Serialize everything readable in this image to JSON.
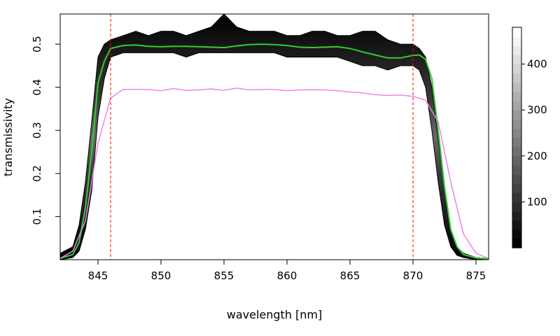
{
  "chart_data": {
    "type": "heatmap",
    "title": "",
    "xlabel": "wavelength [nm]",
    "ylabel": "transmissivity",
    "xlim": [
      842,
      876
    ],
    "ylim": [
      0,
      0.57
    ],
    "x_ticks": [
      845,
      850,
      855,
      860,
      865,
      870,
      875
    ],
    "y_ticks": [
      0.1,
      0.2,
      0.3,
      0.4,
      0.5
    ],
    "reference_lines": [
      846,
      870
    ],
    "reference_line_color": "#ff0000",
    "density_band": {
      "x": [
        842,
        843,
        843.5,
        844,
        844.5,
        845,
        845.5,
        846,
        847,
        848,
        849,
        850,
        851,
        852,
        853,
        854,
        855,
        856,
        857,
        858,
        859,
        860,
        861,
        862,
        863,
        864,
        865,
        866,
        867,
        868,
        869,
        870,
        870.5,
        871,
        871.5,
        872,
        872.5,
        873,
        873.5,
        874,
        875,
        876
      ],
      "lower": [
        0,
        0.005,
        0.02,
        0.07,
        0.16,
        0.33,
        0.42,
        0.47,
        0.48,
        0.48,
        0.48,
        0.48,
        0.48,
        0.47,
        0.48,
        0.48,
        0.48,
        0.48,
        0.48,
        0.48,
        0.48,
        0.47,
        0.47,
        0.47,
        0.47,
        0.47,
        0.46,
        0.45,
        0.45,
        0.44,
        0.45,
        0.45,
        0.44,
        0.4,
        0.3,
        0.18,
        0.08,
        0.03,
        0.01,
        0.005,
        0,
        0
      ],
      "upper": [
        0.015,
        0.03,
        0.08,
        0.18,
        0.32,
        0.47,
        0.5,
        0.51,
        0.52,
        0.53,
        0.52,
        0.53,
        0.53,
        0.52,
        0.53,
        0.54,
        0.57,
        0.54,
        0.53,
        0.53,
        0.53,
        0.52,
        0.52,
        0.53,
        0.53,
        0.52,
        0.52,
        0.53,
        0.53,
        0.51,
        0.5,
        0.5,
        0.49,
        0.47,
        0.4,
        0.28,
        0.17,
        0.07,
        0.03,
        0.015,
        0.005,
        0.003
      ]
    },
    "colorbar": {
      "ticks": [
        100,
        200,
        300,
        400
      ],
      "min": 0,
      "max": 480
    },
    "series": [
      {
        "color": "#33cc33",
        "x": [
          842,
          843,
          843.5,
          844,
          844.5,
          845,
          845.5,
          846,
          847,
          848,
          849,
          850,
          851,
          852,
          853,
          854,
          855,
          856,
          857,
          858,
          859,
          860,
          861,
          862,
          863,
          864,
          865,
          866,
          867,
          868,
          869,
          870,
          870.5,
          871,
          871.5,
          872,
          872.5,
          873,
          873.5,
          874,
          875,
          876
        ],
        "y": [
          0.003,
          0.012,
          0.04,
          0.12,
          0.25,
          0.41,
          0.46,
          0.49,
          0.497,
          0.498,
          0.495,
          0.494,
          0.495,
          0.495,
          0.494,
          0.493,
          0.492,
          0.496,
          0.499,
          0.5,
          0.499,
          0.497,
          0.493,
          0.492,
          0.493,
          0.494,
          0.49,
          0.482,
          0.475,
          0.468,
          0.468,
          0.474,
          0.475,
          0.465,
          0.42,
          0.3,
          0.17,
          0.07,
          0.03,
          0.012,
          0.004,
          0.002
        ]
      },
      {
        "color": "#ee82ee",
        "x": [
          842,
          843,
          844,
          845,
          846,
          847,
          848,
          849,
          850,
          851,
          852,
          853,
          854,
          855,
          856,
          857,
          858,
          859,
          860,
          861,
          862,
          863,
          864,
          865,
          866,
          867,
          868,
          869,
          870,
          871,
          872,
          873,
          874,
          875,
          876
        ],
        "y": [
          0.003,
          0.02,
          0.09,
          0.27,
          0.375,
          0.395,
          0.395,
          0.395,
          0.392,
          0.397,
          0.393,
          0.394,
          0.396,
          0.393,
          0.398,
          0.394,
          0.395,
          0.395,
          0.392,
          0.394,
          0.394,
          0.394,
          0.392,
          0.389,
          0.387,
          0.383,
          0.381,
          0.382,
          0.379,
          0.37,
          0.32,
          0.18,
          0.06,
          0.015,
          0.003
        ]
      }
    ]
  }
}
